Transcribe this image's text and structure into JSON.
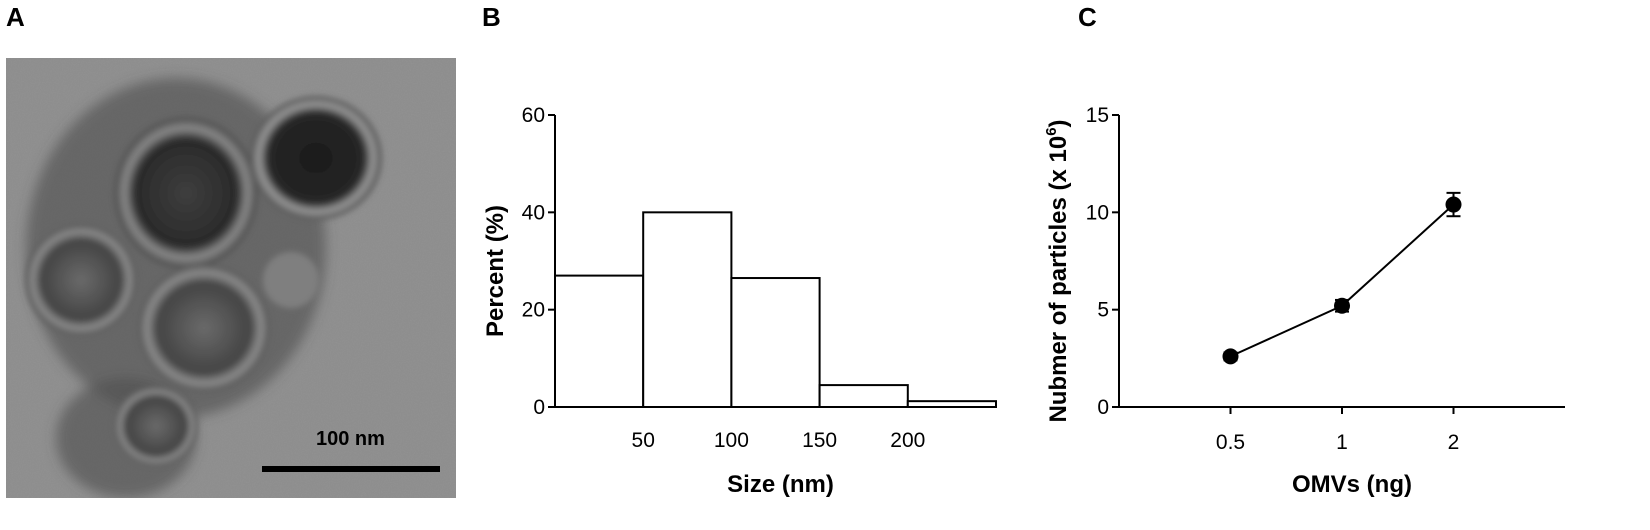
{
  "panels": {
    "a": {
      "letter": "A",
      "scale_bar_label": "100 nm"
    },
    "b": {
      "letter": "B"
    },
    "c": {
      "letter": "C"
    }
  },
  "chart_data": [
    {
      "type": "bar",
      "panel": "B",
      "bins": [
        {
          "from": 0,
          "to": 50,
          "value": 27
        },
        {
          "from": 50,
          "to": 100,
          "value": 40
        },
        {
          "from": 100,
          "to": 150,
          "value": 26.5
        },
        {
          "from": 150,
          "to": 200,
          "value": 4.5
        },
        {
          "from": 200,
          "to": 250,
          "value": 1.2
        }
      ],
      "x_ticks": [
        "50",
        "100",
        "150",
        "200"
      ],
      "y_ticks": [
        "0",
        "20",
        "40",
        "60"
      ],
      "xlabel": "Size (nm)",
      "ylabel": "Percent (%)",
      "xlim": [
        0,
        250
      ],
      "ylim": [
        0,
        60
      ],
      "grid": false,
      "bar_fill": "#ffffff",
      "bar_stroke": "#000000"
    },
    {
      "type": "line",
      "panel": "C",
      "categories": [
        "0.5",
        "1",
        "2"
      ],
      "series": [
        {
          "values": [
            2.6,
            5.2,
            10.4
          ],
          "errors": [
            0.2,
            0.3,
            0.6
          ]
        }
      ],
      "y_ticks": [
        "0",
        "5",
        "10",
        "15"
      ],
      "xlabel": "OMVs (ng)",
      "ylabel": "Nubmer of particles (x 10",
      "ylabel_superscript": "6",
      "ylabel_suffix": ")",
      "ylim": [
        0,
        15
      ],
      "grid": false,
      "marker_color": "#000000"
    }
  ]
}
